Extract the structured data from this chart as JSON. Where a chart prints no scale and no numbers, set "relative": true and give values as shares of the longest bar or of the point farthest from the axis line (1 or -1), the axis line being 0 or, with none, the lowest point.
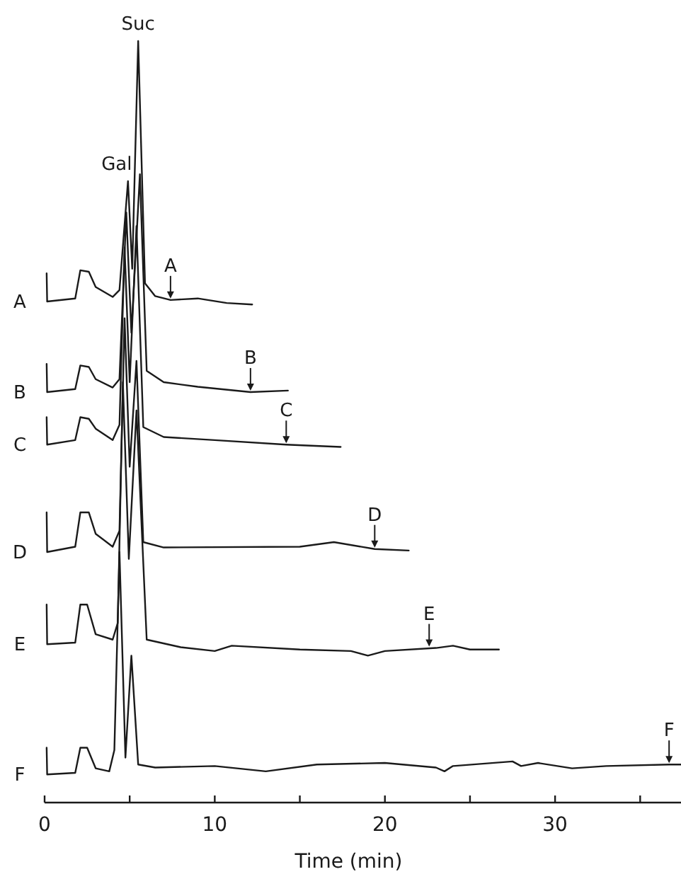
{
  "chart_data": {
    "type": "line",
    "relative": true,
    "xlabel": "Time (min)",
    "xlim": [
      0,
      37.4
    ],
    "xticks": [
      0,
      {
        "value": 5,
        "label": null
      },
      10,
      {
        "value": 15,
        "label": null
      },
      20,
      {
        "value": 25,
        "label": null
      },
      30,
      {
        "value": 35,
        "label": null
      }
    ],
    "legend": false,
    "series": [
      {
        "name": "A",
        "color": "#1a1a1a",
        "x": [
          0.12,
          0.15,
          1.8,
          2.1,
          2.6,
          3.0,
          4.0,
          4.4,
          4.9,
          5.15,
          5.5,
          5.9,
          6.5,
          7.4,
          9.0,
          10.7,
          12.2
        ],
        "values": [
          0.695,
          0.658,
          0.662,
          0.699,
          0.697,
          0.677,
          0.664,
          0.673,
          0.816,
          0.701,
          1,
          0.682,
          0.665,
          0.66,
          0.662,
          0.656,
          0.654
        ]
      },
      {
        "name": "B",
        "color": "#1a1a1a",
        "x": [
          0.12,
          0.15,
          1.8,
          2.1,
          2.6,
          3.0,
          4.0,
          4.4,
          4.8,
          5.1,
          5.6,
          6.0,
          7,
          9,
          12.1,
          14.3
        ],
        "values": [
          0.576,
          0.539,
          0.543,
          0.574,
          0.572,
          0.556,
          0.545,
          0.556,
          0.775,
          0.617,
          0.825,
          0.567,
          0.552,
          0.546,
          0.539,
          0.541
        ]
      },
      {
        "name": "C",
        "color": "#1a1a1a",
        "x": [
          0.12,
          0.15,
          1.8,
          2.1,
          2.6,
          3.0,
          4.0,
          4.4,
          4.7,
          5.0,
          5.4,
          5.8,
          7,
          10,
          14.2,
          17.4
        ],
        "values": [
          0.506,
          0.47,
          0.476,
          0.506,
          0.504,
          0.491,
          0.476,
          0.496,
          0.729,
          0.552,
          0.757,
          0.493,
          0.48,
          0.476,
          0.47,
          0.467
        ]
      },
      {
        "name": "D",
        "color": "#1a1a1a",
        "x": [
          0.12,
          0.15,
          1.8,
          2.1,
          2.6,
          3.0,
          4.0,
          4.4,
          4.7,
          5.0,
          5.4,
          5.8,
          7,
          15,
          17,
          19.4,
          21.4
        ],
        "values": [
          0.381,
          0.329,
          0.336,
          0.381,
          0.381,
          0.353,
          0.336,
          0.357,
          0.636,
          0.441,
          0.58,
          0.342,
          0.335,
          0.336,
          0.342,
          0.333,
          0.331
        ]
      },
      {
        "name": "E",
        "color": "#1a1a1a",
        "x": [
          0.12,
          0.15,
          1.8,
          2.1,
          2.5,
          3.0,
          4.0,
          4.3,
          4.6,
          4.95,
          5.4,
          6.0,
          8,
          10,
          11,
          15,
          18,
          19,
          20,
          23,
          24,
          25,
          26.7
        ],
        "values": [
          0.26,
          0.208,
          0.21,
          0.26,
          0.26,
          0.221,
          0.214,
          0.236,
          0.552,
          0.32,
          0.515,
          0.214,
          0.204,
          0.199,
          0.206,
          0.201,
          0.199,
          0.193,
          0.199,
          0.203,
          0.206,
          0.201,
          0.201
        ]
      },
      {
        "name": "F",
        "color": "#1a1a1a",
        "x": [
          0.12,
          0.15,
          1.8,
          2.1,
          2.5,
          3.0,
          3.8,
          4.1,
          4.4,
          4.75,
          5.1,
          5.5,
          6.5,
          10,
          13,
          16,
          20,
          23,
          23.5,
          24,
          27.5,
          28,
          29,
          31,
          33,
          36.7,
          37.4
        ],
        "values": [
          0.072,
          0.037,
          0.039,
          0.072,
          0.072,
          0.045,
          0.041,
          0.069,
          0.329,
          0.059,
          0.193,
          0.05,
          0.046,
          0.048,
          0.041,
          0.05,
          0.052,
          0.046,
          0.041,
          0.048,
          0.054,
          0.048,
          0.052,
          0.045,
          0.048,
          0.05,
          0.05
        ]
      }
    ],
    "annotations": [
      {
        "text": "Gal",
        "x": 4.9,
        "y": 0.816
      },
      {
        "text": "Suc",
        "x": 5.5,
        "y": 1
      },
      {
        "text": "A",
        "x": 7.4,
        "y": 0.66
      },
      {
        "text": "B",
        "x": 12.1,
        "y": 0.539
      },
      {
        "text": "C",
        "x": 14.2,
        "y": 0.47
      },
      {
        "text": "D",
        "x": 19.4,
        "y": 0.333
      },
      {
        "text": "E",
        "x": 22.6,
        "y": 0.203
      },
      {
        "text": "F",
        "x": 36.7,
        "y": 0.05
      }
    ]
  }
}
